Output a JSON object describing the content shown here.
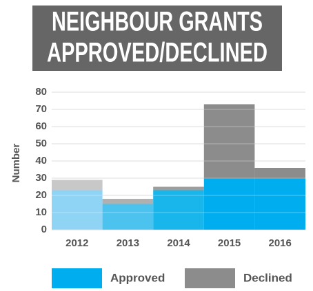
{
  "chart_data": {
    "type": "stacked_bar",
    "title": [
      "NEIGHBOUR GRANTS",
      "APPROVED/DECLINED"
    ],
    "y_label": "Number",
    "categories": [
      "2012",
      "2013",
      "2014",
      "2015",
      "2016"
    ],
    "series": [
      {
        "name": "Approved",
        "color": "#00aeef",
        "colors": [
          "#8fd4f5",
          "#4cc3ef",
          "#19b6eb",
          "#00aeef",
          "#00aeef"
        ],
        "values": [
          23,
          15,
          23,
          30,
          30
        ]
      },
      {
        "name": "Declined",
        "color": "#8c8c8c",
        "colors": [
          "#c8c8c8",
          "#b0b0b0",
          "#9e9e9e",
          "#8c8c8c",
          "#8c8c8c"
        ],
        "values": [
          6,
          3,
          2,
          43,
          6
        ]
      }
    ],
    "ylim": [
      0,
      80
    ],
    "yticks": [
      0,
      10,
      20,
      30,
      40,
      50,
      60,
      70,
      80
    ],
    "grid": true
  }
}
